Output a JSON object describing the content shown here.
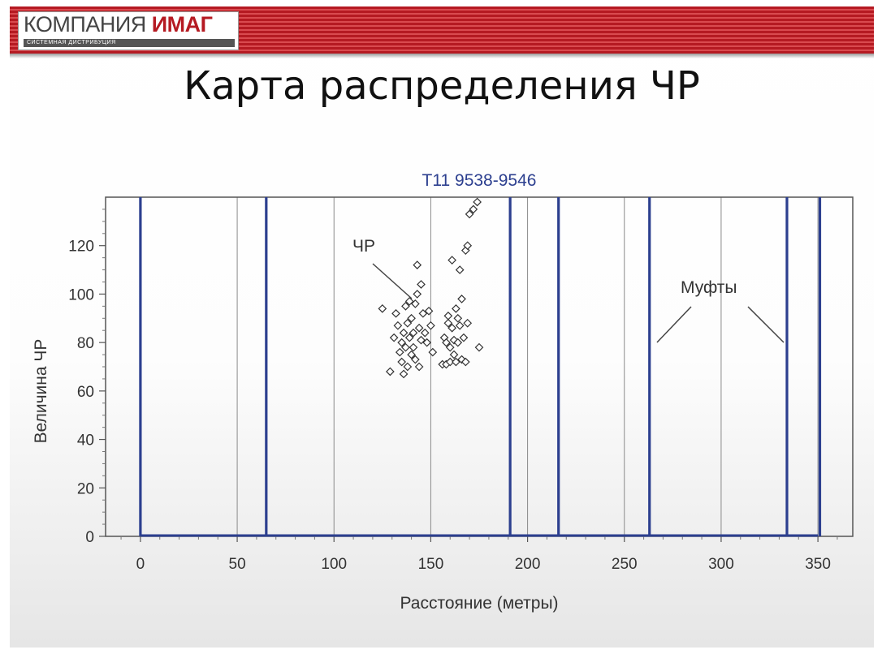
{
  "logo": {
    "name_part1": "КОМПАНИЯ",
    "name_part2": "ИМАГ",
    "subtitle": "СИСТЕМНАЯ ДИСТРИБУЦИЯ"
  },
  "slide_title": "Карта распределения ЧР",
  "colors": {
    "header_red": "#b51a22",
    "coupling_line": "#2c3f8f",
    "title_blue": "#2c3f8f"
  },
  "chart_data": {
    "type": "scatter",
    "title": "T11 9538-9546",
    "xlabel": "Расстояние (метры)",
    "ylabel": "Величина ЧР",
    "xlim": [
      -18,
      368
    ],
    "ylim": [
      0,
      140
    ],
    "xticks": [
      0,
      50,
      100,
      150,
      200,
      250,
      300,
      350
    ],
    "yticks": [
      0,
      20,
      40,
      60,
      80,
      100,
      120
    ],
    "grid": "vertical",
    "baseline_line": {
      "from": 0,
      "to": 350,
      "y": 0
    },
    "coupling_lines_x": [
      0,
      65,
      191,
      216,
      263,
      334,
      351
    ],
    "annotations": [
      {
        "text": "ЧР"
      },
      {
        "text": "Муфты"
      }
    ],
    "points": [
      {
        "x": 125,
        "y": 94
      },
      {
        "x": 129,
        "y": 68
      },
      {
        "x": 131,
        "y": 82
      },
      {
        "x": 132,
        "y": 92
      },
      {
        "x": 133,
        "y": 87
      },
      {
        "x": 134,
        "y": 76
      },
      {
        "x": 135,
        "y": 80
      },
      {
        "x": 135,
        "y": 72
      },
      {
        "x": 136,
        "y": 84
      },
      {
        "x": 136,
        "y": 67
      },
      {
        "x": 137,
        "y": 95
      },
      {
        "x": 137,
        "y": 78
      },
      {
        "x": 138,
        "y": 88
      },
      {
        "x": 138,
        "y": 70
      },
      {
        "x": 139,
        "y": 97
      },
      {
        "x": 139,
        "y": 82
      },
      {
        "x": 140,
        "y": 75
      },
      {
        "x": 140,
        "y": 90
      },
      {
        "x": 141,
        "y": 84
      },
      {
        "x": 141,
        "y": 78
      },
      {
        "x": 142,
        "y": 96
      },
      {
        "x": 142,
        "y": 73
      },
      {
        "x": 143,
        "y": 112
      },
      {
        "x": 143,
        "y": 100
      },
      {
        "x": 144,
        "y": 86
      },
      {
        "x": 144,
        "y": 70
      },
      {
        "x": 145,
        "y": 104
      },
      {
        "x": 145,
        "y": 81
      },
      {
        "x": 146,
        "y": 92
      },
      {
        "x": 147,
        "y": 84
      },
      {
        "x": 148,
        "y": 80
      },
      {
        "x": 149,
        "y": 93
      },
      {
        "x": 150,
        "y": 87
      },
      {
        "x": 151,
        "y": 76
      },
      {
        "x": 156,
        "y": 71
      },
      {
        "x": 157,
        "y": 82
      },
      {
        "x": 158,
        "y": 80
      },
      {
        "x": 158,
        "y": 71
      },
      {
        "x": 159,
        "y": 88
      },
      {
        "x": 159,
        "y": 91
      },
      {
        "x": 160,
        "y": 78
      },
      {
        "x": 160,
        "y": 72
      },
      {
        "x": 161,
        "y": 86
      },
      {
        "x": 161,
        "y": 114
      },
      {
        "x": 162,
        "y": 81
      },
      {
        "x": 162,
        "y": 75
      },
      {
        "x": 163,
        "y": 94
      },
      {
        "x": 163,
        "y": 72
      },
      {
        "x": 164,
        "y": 90
      },
      {
        "x": 164,
        "y": 80
      },
      {
        "x": 165,
        "y": 87
      },
      {
        "x": 165,
        "y": 110
      },
      {
        "x": 166,
        "y": 98
      },
      {
        "x": 166,
        "y": 73
      },
      {
        "x": 167,
        "y": 82
      },
      {
        "x": 168,
        "y": 118
      },
      {
        "x": 168,
        "y": 72
      },
      {
        "x": 169,
        "y": 120
      },
      {
        "x": 169,
        "y": 88
      },
      {
        "x": 170,
        "y": 133
      },
      {
        "x": 172,
        "y": 135
      },
      {
        "x": 174,
        "y": 138
      },
      {
        "x": 175,
        "y": 78
      }
    ]
  }
}
